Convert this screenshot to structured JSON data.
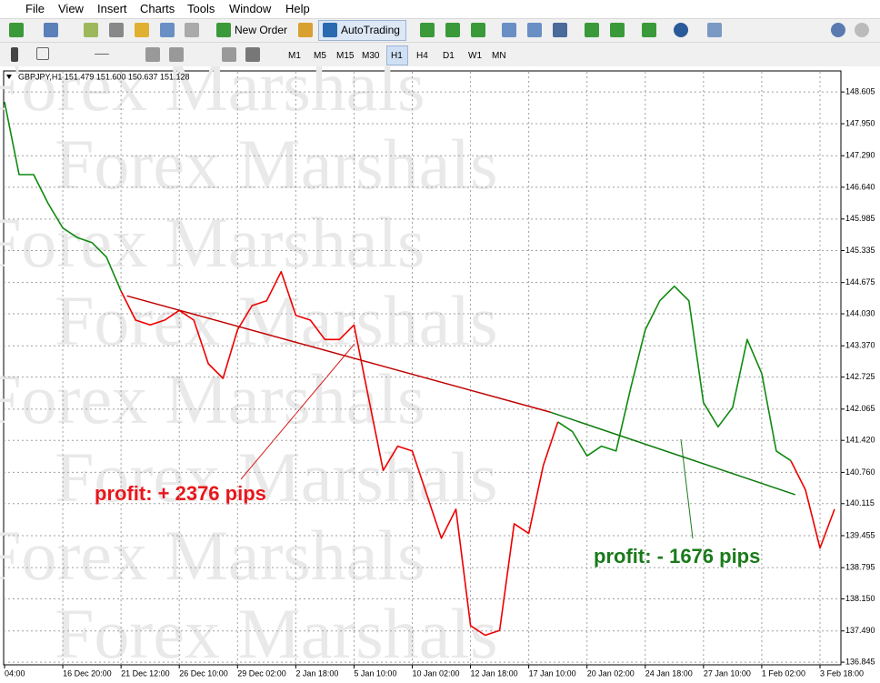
{
  "menu": [
    "File",
    "View",
    "Insert",
    "Charts",
    "Tools",
    "Window",
    "Help"
  ],
  "toolbar": {
    "new_order": "New Order",
    "auto_trading": "AutoTrading"
  },
  "timeframes": [
    "M1",
    "M5",
    "M15",
    "M30",
    "H1",
    "H4",
    "D1",
    "W1",
    "MN"
  ],
  "chart_data": {
    "type": "line",
    "title": "GBPJPY,H1 151.479 151.600 150.637 151.128",
    "watermark": "Forex Marshals",
    "categories": [
      "04:00",
      null,
      null,
      null,
      "16 Dec 20:00",
      null,
      null,
      null,
      "21 Dec 12:00",
      null,
      null,
      null,
      "26 Dec 10:00",
      null,
      null,
      null,
      "29 Dec 02:00",
      null,
      null,
      null,
      "2 Jan 18:00",
      null,
      null,
      null,
      "5 Jan 10:00",
      null,
      null,
      null,
      "10 Jan 02:00",
      null,
      null,
      null,
      "12 Jan 18:00",
      null,
      null,
      null,
      "17 Jan 10:00",
      null,
      null,
      null,
      "20 Jan 02:00",
      null,
      null,
      null,
      "24 Jan 18:00",
      null,
      null,
      null,
      "27 Jan 10:00",
      null,
      null,
      null,
      "1 Feb 02:00",
      null,
      null,
      null,
      "3 Feb 18:00",
      null
    ],
    "series": [
      {
        "color": "#0f8a0f",
        "values": [
          148.4,
          146.9,
          146.9,
          146.3,
          145.8,
          145.6,
          145.5,
          145.2,
          144.5,
          null,
          null,
          null,
          null,
          null,
          null,
          null,
          null,
          null,
          null,
          null,
          null,
          null,
          null,
          null,
          null,
          null,
          null,
          null,
          null,
          null,
          null,
          null,
          null,
          null,
          null,
          null,
          null,
          null,
          141.8,
          141.6,
          141.1,
          141.3,
          141.2,
          142.5,
          143.7,
          144.3,
          144.6,
          144.3,
          142.2,
          141.7,
          142.1,
          143.5,
          142.8,
          141.2,
          141.0,
          null,
          null,
          null
        ]
      },
      {
        "color": "#ee0000",
        "values": [
          null,
          null,
          null,
          null,
          null,
          null,
          null,
          null,
          144.5,
          143.9,
          143.8,
          143.9,
          144.1,
          143.9,
          143.0,
          142.7,
          143.7,
          144.2,
          144.3,
          144.9,
          144.0,
          143.9,
          143.5,
          143.5,
          143.8,
          142.3,
          140.8,
          141.3,
          141.2,
          140.3,
          139.4,
          140.0,
          137.6,
          137.4,
          137.5,
          139.7,
          139.5,
          140.9,
          141.8,
          null,
          null,
          null,
          null,
          null,
          null,
          null,
          null,
          null,
          null,
          null,
          null,
          null,
          null,
          null,
          141.0,
          140.4,
          139.2,
          140.0
        ]
      }
    ],
    "trend_lines": [
      {
        "color": "#c00000",
        "x": [
          8.4,
          37.5
        ],
        "y": [
          144.4,
          142.0
        ]
      },
      {
        "color": "#0a7a0a",
        "x": [
          37.5,
          54.3
        ],
        "y": [
          142.0,
          140.3
        ]
      }
    ],
    "annotations": [
      {
        "text": "profit: + 2376 pips",
        "color": "#e8161b"
      },
      {
        "text": "profit: - 1676 pips",
        "color": "#1a7a1a"
      }
    ],
    "ylim": [
      136.81,
      149.02
    ],
    "yticks": [
      148.605,
      {
        "value": 147.95,
        "label": "147.950"
      },
      {
        "value": 147.29,
        "label": "147.290"
      },
      {
        "value": 146.64,
        "label": "146.640"
      },
      145.985,
      145.335,
      144.675,
      {
        "value": 144.03,
        "label": "144.030"
      },
      {
        "value": 143.37,
        "label": "143.370"
      },
      142.725,
      142.065,
      {
        "value": 141.42,
        "label": "141.420"
      },
      {
        "value": 140.76,
        "label": "140.760"
      },
      140.115,
      139.455,
      138.795,
      {
        "value": 138.15,
        "label": "138.150"
      },
      {
        "value": 137.49,
        "label": "137.490"
      },
      136.845
    ],
    "grid": true
  }
}
